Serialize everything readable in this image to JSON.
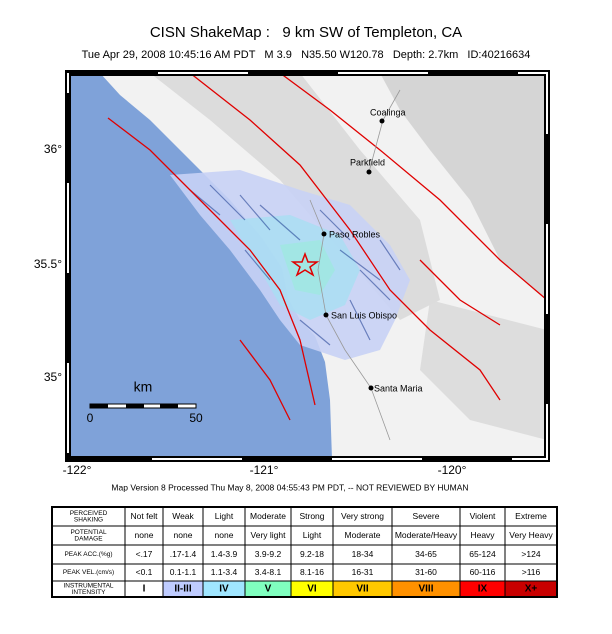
{
  "title": "CISN ShakeMap :   9 km SW of Templeton, CA",
  "subtitle": "Tue Apr 29, 2008 10:45:16 AM PDT   M 3.9   N35.50 W120.78   Depth: 2.7km   ID:40216634",
  "lat_labels": [
    "36°",
    "35.5°",
    "35°"
  ],
  "lon_labels": [
    "-122°",
    "-121°",
    "-120°"
  ],
  "cities": [
    "Coalinga",
    "Parkfield",
    "Paso Robles",
    "San Luis Obispo",
    "Santa Maria"
  ],
  "scale_bar": {
    "unit": "km",
    "labels": [
      "0",
      "50"
    ]
  },
  "footer": "Map Version 8 Processed Thu May 8, 2008 04:55:43 PM PDT, -- NOT REVIEWED BY HUMAN",
  "legend": {
    "rows": [
      {
        "label": [
          "PERCEIVED",
          "SHAKING"
        ],
        "cells": [
          "Not felt",
          "Weak",
          "Light",
          "Moderate",
          "Strong",
          "Very strong",
          "Severe",
          "Violent",
          "Extreme"
        ]
      },
      {
        "label": [
          "POTENTIAL",
          "DAMAGE"
        ],
        "cells": [
          "none",
          "none",
          "none",
          "Very light",
          "Light",
          "Moderate",
          "Moderate/Heavy",
          "Heavy",
          "Very Heavy"
        ]
      },
      {
        "label": [
          "PEAK ACC.(%g)"
        ],
        "cells": [
          "<.17",
          ".17-1.4",
          "1.4-3.9",
          "3.9-9.2",
          "9.2-18",
          "18-34",
          "34-65",
          "65-124",
          ">124"
        ]
      },
      {
        "label": [
          "PEAK VEL.(cm/s)"
        ],
        "cells": [
          "<0.1",
          "0.1-1.1",
          "1.1-3.4",
          "3.4-8.1",
          "8.1-16",
          "16-31",
          "31-60",
          "60-116",
          ">116"
        ]
      },
      {
        "label": [
          "INSTRUMENTAL",
          "INTENSITY"
        ],
        "cells": [
          "I",
          "II-III",
          "IV",
          "V",
          "VI",
          "VII",
          "VIII",
          "IX",
          "X+"
        ]
      }
    ]
  }
}
